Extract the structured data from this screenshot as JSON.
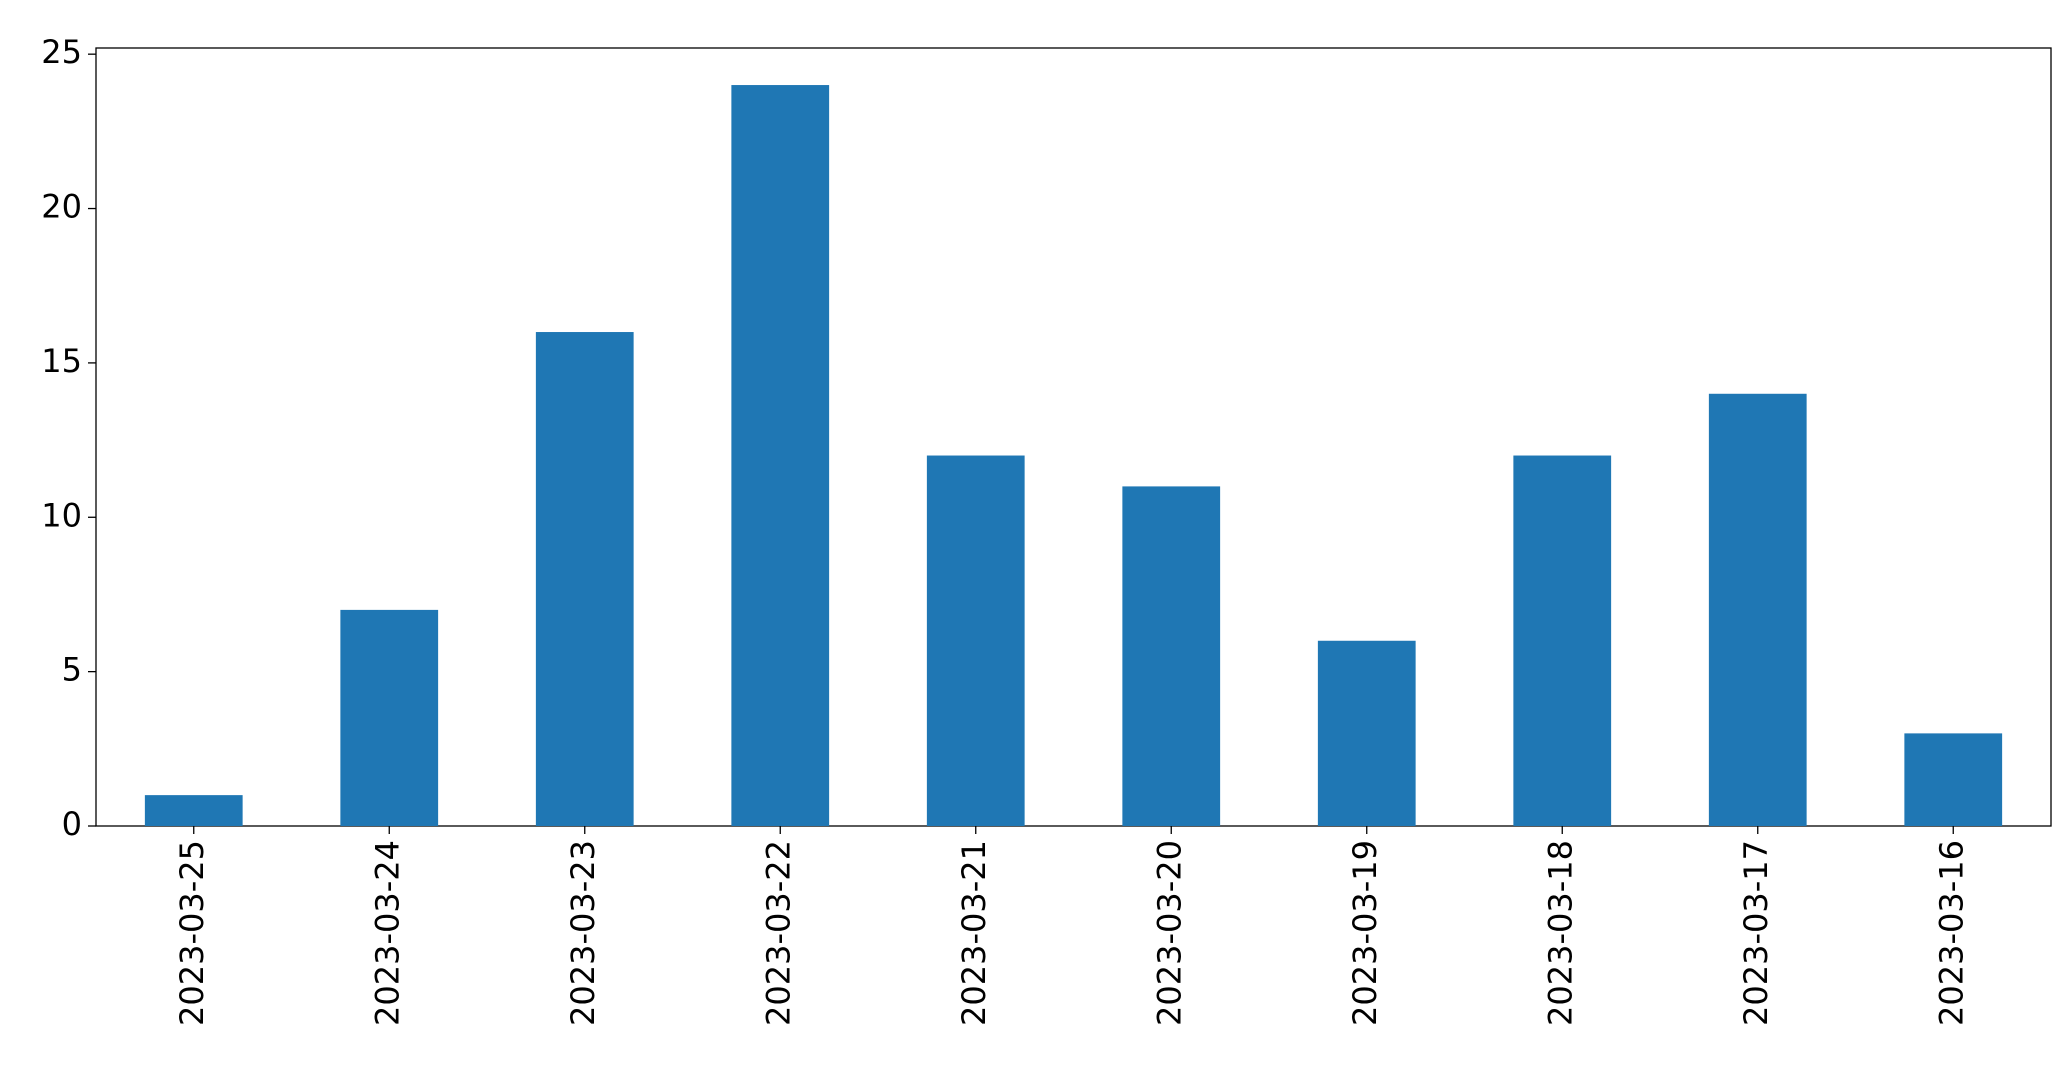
{
  "chart_data": {
    "type": "bar",
    "categories": [
      "2023-03-25",
      "2023-03-24",
      "2023-03-23",
      "2023-03-22",
      "2023-03-21",
      "2023-03-20",
      "2023-03-19",
      "2023-03-18",
      "2023-03-17",
      "2023-03-16"
    ],
    "values": [
      1,
      7,
      16,
      24,
      12,
      11,
      6,
      12,
      14,
      3
    ],
    "color": "#1f77b4",
    "ylim": [
      0,
      25.2
    ],
    "yticks": [
      0,
      5,
      10,
      15,
      20,
      25
    ],
    "grid": false
  }
}
